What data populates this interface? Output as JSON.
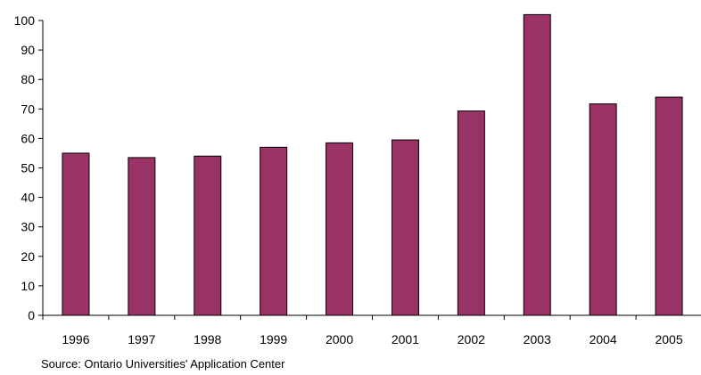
{
  "chart_data": {
    "type": "bar",
    "categories": [
      "1996",
      "1997",
      "1998",
      "1999",
      "2000",
      "2001",
      "2002",
      "2003",
      "2004",
      "2005"
    ],
    "values": [
      55,
      53.5,
      54,
      57,
      58.5,
      59.5,
      69.3,
      102,
      71.7,
      74
    ],
    "title": "",
    "xlabel": "",
    "ylabel": "",
    "ylim": [
      0,
      100
    ],
    "yticks": [
      0,
      10,
      20,
      30,
      40,
      50,
      60,
      70,
      80,
      90,
      100
    ],
    "grid": false,
    "legend": "none",
    "bar_color": "#993366",
    "bar_stroke": "#000000",
    "axis_color": "#000000"
  },
  "source_note": "Source: Ontario Universities' Application Center"
}
